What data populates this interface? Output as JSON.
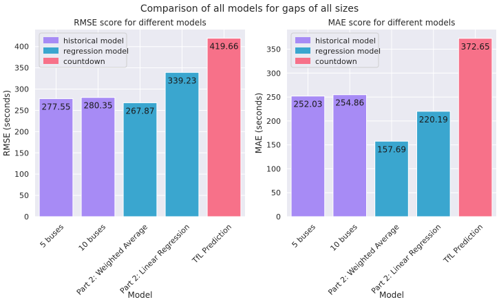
{
  "suptitle": "Comparison of all models for gaps of all sizes",
  "legend_colors": {
    "historical model": "#a78bf5",
    "regression model": "#3aa6cf",
    "countdown": "#f77189"
  },
  "chart_data": [
    {
      "type": "bar",
      "title": "RMSE score for different models",
      "xlabel": "Model",
      "ylabel": "RMSE (seconds)",
      "ylim": [
        0,
        440
      ],
      "yticks": [
        0,
        50,
        100,
        150,
        200,
        250,
        300,
        350,
        400
      ],
      "grid": true,
      "legend_position": "top-left",
      "categories": [
        "5 buses",
        "10 buses",
        "Part 2: Weighted Average",
        "Part 2: Linear Regression",
        "TfL Prediction"
      ],
      "values": [
        277.55,
        280.35,
        267.87,
        339.23,
        419.66
      ],
      "value_labels": [
        "277.55",
        "280.35",
        "267.87",
        "339.23",
        "419.66"
      ],
      "groups": [
        "historical model",
        "historical model",
        "regression model",
        "regression model",
        "countdown"
      ],
      "legend": [
        "historical model",
        "regression model",
        "countdown"
      ]
    },
    {
      "type": "bar",
      "title": "MAE score for different models",
      "xlabel": "Model",
      "ylabel": "MAE (seconds)",
      "ylim": [
        0,
        391
      ],
      "yticks": [
        0,
        50,
        100,
        150,
        200,
        250,
        300,
        350
      ],
      "grid": true,
      "legend_position": "top-left",
      "categories": [
        "5 buses",
        "10 buses",
        "Part 2: Weighted Average",
        "Part 2: Linear Regression",
        "TfL Prediction"
      ],
      "values": [
        252.03,
        254.86,
        157.69,
        220.19,
        372.65
      ],
      "value_labels": [
        "252.03",
        "254.86",
        "157.69",
        "220.19",
        "372.65"
      ],
      "groups": [
        "historical model",
        "historical model",
        "regression model",
        "regression model",
        "countdown"
      ],
      "legend": [
        "historical model",
        "regression model",
        "countdown"
      ]
    }
  ]
}
